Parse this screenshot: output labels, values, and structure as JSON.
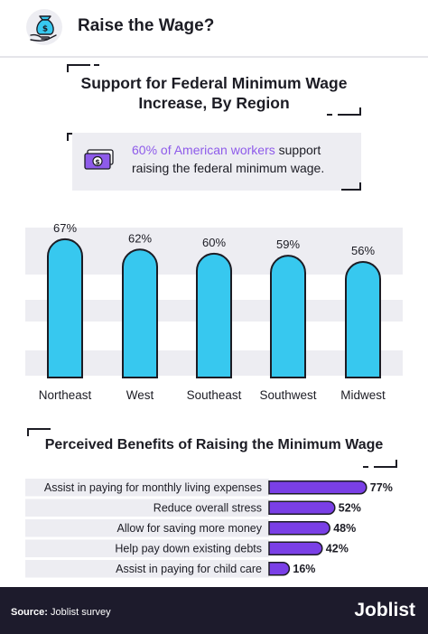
{
  "header": {
    "title": "Raise the Wage?",
    "icon": "hand-money-bag-icon"
  },
  "callout": {
    "highlight": "60% of American workers",
    "text": " support raising the federal minimum wage.",
    "icon": "dollar-bill-icon"
  },
  "colors": {
    "bar_fill": "#37c8ef",
    "bar_outline": "#1c1c24",
    "hbar_fill": "#7a3fe6",
    "highlight": "#8e5bea",
    "stripe": "#ededf2",
    "footer_bg": "#1d1b2c"
  },
  "chart_data": [
    {
      "type": "bar",
      "title": "Support for Federal Minimum Wage Increase, By Region",
      "categories": [
        "Northeast",
        "West",
        "Southeast",
        "Southwest",
        "Midwest"
      ],
      "values": [
        67,
        62,
        60,
        59,
        56
      ],
      "value_labels": [
        "67%",
        "62%",
        "60%",
        "59%",
        "56%"
      ],
      "unit": "%",
      "ylim": [
        0,
        70
      ],
      "grid": false,
      "legend": "none"
    },
    {
      "type": "bar",
      "orientation": "horizontal",
      "title": "Perceived Benefits of Raising the Minimum Wage",
      "categories": [
        "Assist in paying for monthly living expenses",
        "Reduce overall stress",
        "Allow for saving more money",
        "Help pay down existing debts",
        "Assist in paying for child care"
      ],
      "values": [
        77,
        52,
        48,
        42,
        16
      ],
      "value_labels": [
        "77%",
        "52%",
        "48%",
        "42%",
        "16%"
      ],
      "unit": "%",
      "xlim": [
        0,
        100
      ],
      "legend": "none"
    }
  ],
  "footer": {
    "source_label": "Source:",
    "source_text": " Joblist survey",
    "brand": "Joblist"
  }
}
